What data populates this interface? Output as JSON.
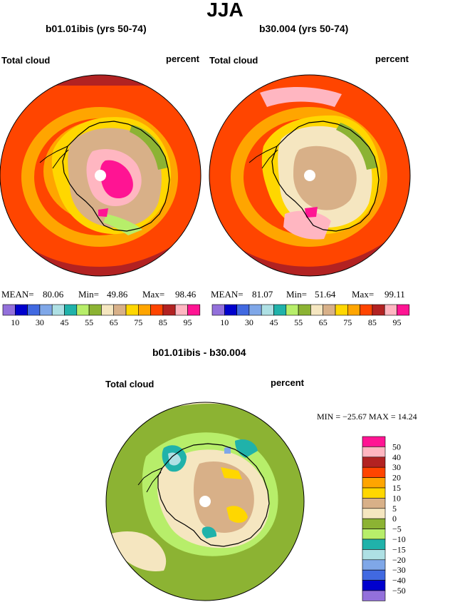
{
  "figure": {
    "season": "JJA",
    "diff_title": "b01.01ibis - b30.004"
  },
  "panels": [
    {
      "case_title": "b01.01ibis (yrs 50-74)",
      "left_label": "Total cloud",
      "right_label": "percent",
      "stats": {
        "mean_label": "MEAN=",
        "mean": "80.06",
        "min_label": "Min=",
        "min": "49.86",
        "max_label": "Max=",
        "max": "98.46"
      }
    },
    {
      "case_title": "b30.004 (yrs 50-74)",
      "left_label": "Total cloud",
      "right_label": "percent",
      "stats": {
        "mean_label": "MEAN=",
        "mean": "81.07",
        "min_label": "Min=",
        "min": "51.64",
        "max_label": "Max=",
        "max": "99.11"
      }
    },
    {
      "left_label": "Total cloud",
      "right_label": "percent",
      "stats_text": "MIN = −25.67 MAX =  14.24"
    }
  ],
  "chart_data": [
    {
      "type": "heatmap",
      "title": "b01.01ibis (yrs 50-74)",
      "projection": "south polar stereographic",
      "field": "Total cloud",
      "units": "percent",
      "mean": 80.06,
      "min": 49.86,
      "max": 98.46,
      "colorbar": {
        "levels": [
          10,
          20,
          30,
          40,
          45,
          50,
          55,
          60,
          65,
          70,
          75,
          80,
          85,
          90,
          95
        ],
        "tick_labels": [
          "10",
          "30",
          "45",
          "55",
          "65",
          "75",
          "85",
          "95"
        ],
        "colors": [
          "#9370DB",
          "#0000CD",
          "#4169E1",
          "#7FA7E8",
          "#AEE0E4",
          "#20B2AA",
          "#B7EE6A",
          "#8CB333",
          "#F5E6C0",
          "#D8B088",
          "#FFD700",
          "#FFA500",
          "#FF4500",
          "#B22222",
          "#FFB6C1",
          "#FF1493"
        ]
      }
    },
    {
      "type": "heatmap",
      "title": "b30.004 (yrs 50-74)",
      "projection": "south polar stereographic",
      "field": "Total cloud",
      "units": "percent",
      "mean": 81.07,
      "min": 51.64,
      "max": 99.11,
      "colorbar": {
        "levels": [
          10,
          20,
          30,
          40,
          45,
          50,
          55,
          60,
          65,
          70,
          75,
          80,
          85,
          90,
          95
        ],
        "tick_labels": [
          "10",
          "30",
          "45",
          "55",
          "65",
          "75",
          "85",
          "95"
        ],
        "colors": [
          "#9370DB",
          "#0000CD",
          "#4169E1",
          "#7FA7E8",
          "#AEE0E4",
          "#20B2AA",
          "#B7EE6A",
          "#8CB333",
          "#F5E6C0",
          "#D8B088",
          "#FFD700",
          "#FFA500",
          "#FF4500",
          "#B22222",
          "#FFB6C1",
          "#FF1493"
        ]
      }
    },
    {
      "type": "heatmap",
      "title": "b01.01ibis - b30.004",
      "projection": "south polar stereographic",
      "field": "Total cloud",
      "units": "percent",
      "min": -25.67,
      "max": 14.24,
      "colorbar": {
        "levels": [
          50,
          40,
          30,
          20,
          15,
          10,
          5,
          0,
          -5,
          -10,
          -15,
          -20,
          -30,
          -40,
          -50
        ],
        "tick_labels": [
          "50",
          "40",
          "30",
          "20",
          "15",
          "10",
          "5",
          "0",
          "−5",
          "−10",
          "−15",
          "−20",
          "−30",
          "−40",
          "−50"
        ],
        "colors": [
          "#FF1493",
          "#FFB6C1",
          "#B22222",
          "#FF4500",
          "#FFA500",
          "#FFD700",
          "#D8B088",
          "#F5E6C0",
          "#8CB333",
          "#B7EE6A",
          "#20B2AA",
          "#AEE0E4",
          "#7FA7E8",
          "#4169E1",
          "#0000CD",
          "#9370DB"
        ]
      }
    }
  ]
}
